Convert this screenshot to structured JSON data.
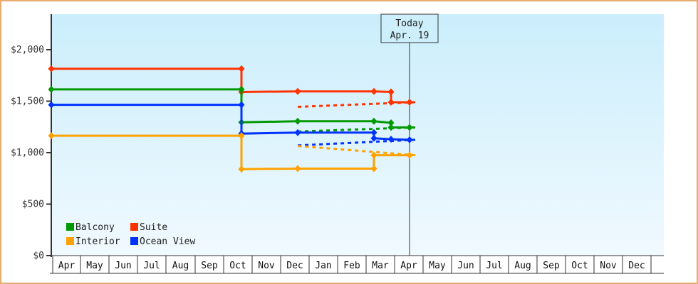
{
  "chart_data": {
    "type": "line",
    "title": "",
    "xlabel": "",
    "ylabel": "",
    "ylim": [
      0,
      2300
    ],
    "grid": false,
    "legend_position": "bottom-left inside plot",
    "y_ticks": [
      "$0",
      "$500",
      "$1,000",
      "$1,500",
      "$2,000"
    ],
    "y_tick_values": [
      0,
      500,
      1000,
      1500,
      2000
    ],
    "x_ticks": [
      "Apr",
      "May",
      "Jun",
      "Jul",
      "Aug",
      "Sep",
      "Oct",
      "Nov",
      "Dec",
      "Jan",
      "Feb",
      "Mar",
      "Apr",
      "May",
      "Jun",
      "Jul",
      "Aug",
      "Sep",
      "Oct",
      "Nov",
      "Dec"
    ],
    "annotation": {
      "line1": "Today",
      "line2": "Apr. 19"
    },
    "legend": [
      {
        "name": "Balcony",
        "color": "#009900"
      },
      {
        "name": "Suite",
        "color": "#ff3300"
      },
      {
        "name": "Interior",
        "color": "#ffa200"
      },
      {
        "name": "Ocean View",
        "color": "#0033ff"
      }
    ],
    "series": [
      {
        "name": "Suite",
        "color": "#ff3300",
        "history": [
          [
            "Apr",
            1815
          ],
          [
            "early Oct",
            1815
          ],
          [
            "early Oct",
            1590
          ],
          [
            "Dec",
            1595
          ],
          [
            "mid Mar",
            1595
          ],
          [
            "late Mar",
            1590
          ],
          [
            "late Mar",
            1490
          ],
          [
            "Apr 19",
            1490
          ]
        ],
        "forecast": [
          [
            "Apr 19",
            1490
          ],
          [
            "Dec",
            1445
          ]
        ]
      },
      {
        "name": "Balcony",
        "color": "#009900",
        "history": [
          [
            "Apr",
            1615
          ],
          [
            "early Oct",
            1615
          ],
          [
            "early Oct",
            1295
          ],
          [
            "Dec",
            1305
          ],
          [
            "mid Mar",
            1305
          ],
          [
            "late Mar",
            1290
          ],
          [
            "late Mar",
            1245
          ],
          [
            "Apr 19",
            1245
          ]
        ],
        "forecast": [
          [
            "Apr 19",
            1245
          ],
          [
            "Dec",
            1205
          ]
        ]
      },
      {
        "name": "Ocean View",
        "color": "#0033ff",
        "history": [
          [
            "Apr",
            1465
          ],
          [
            "early Oct",
            1465
          ],
          [
            "early Oct",
            1185
          ],
          [
            "Dec",
            1195
          ],
          [
            "mid Mar",
            1195
          ],
          [
            "mid Mar",
            1140
          ],
          [
            "late Mar",
            1130
          ],
          [
            "Apr 19",
            1125
          ]
        ],
        "forecast": [
          [
            "Apr 19",
            1125
          ],
          [
            "Dec",
            1070
          ]
        ]
      },
      {
        "name": "Interior",
        "color": "#ffa200",
        "history": [
          [
            "Apr",
            1165
          ],
          [
            "early Oct",
            1165
          ],
          [
            "early Oct",
            840
          ],
          [
            "Dec",
            845
          ],
          [
            "mid Mar",
            845
          ],
          [
            "mid Mar",
            975
          ],
          [
            "Apr 19",
            975
          ]
        ],
        "forecast": [
          [
            "Apr 19",
            975
          ],
          [
            "Dec",
            1065
          ]
        ]
      }
    ]
  }
}
